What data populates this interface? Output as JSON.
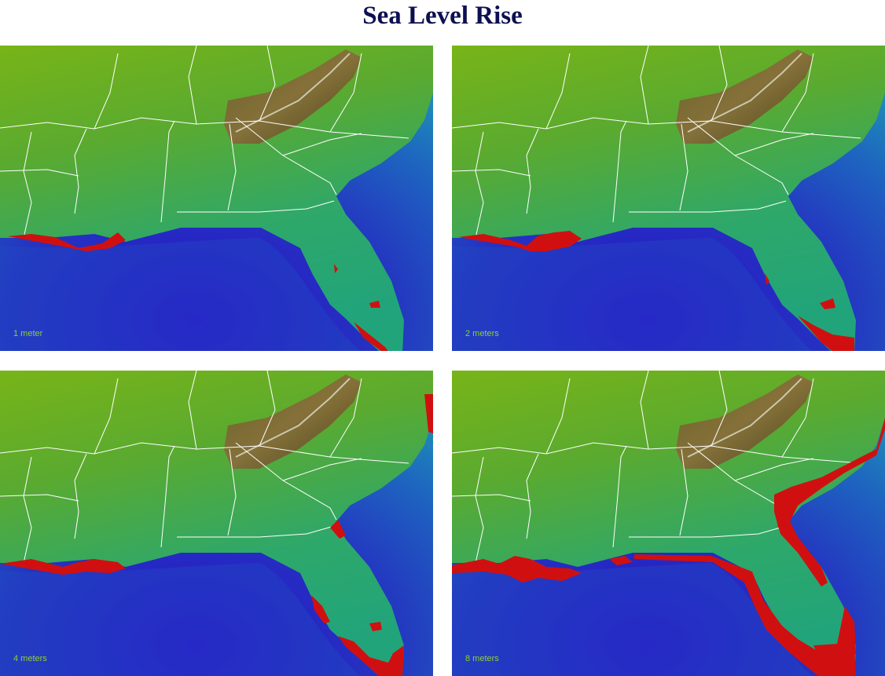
{
  "title": "Sea Level Rise",
  "panels": [
    {
      "label": "1 meter"
    },
    {
      "label": "2 meters"
    },
    {
      "label": "4 meters"
    },
    {
      "label": "8 meters"
    }
  ]
}
